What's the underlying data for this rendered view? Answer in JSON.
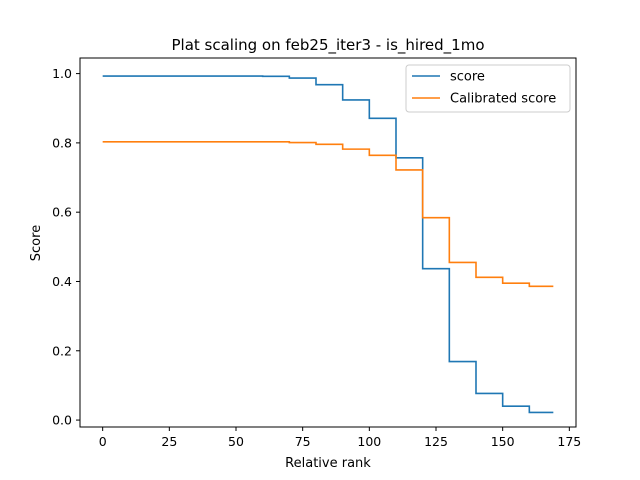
{
  "chart_data": {
    "type": "line",
    "title": "Plat scaling on feb25_iter3 - is_hired_1mo",
    "xlabel": "Relative rank",
    "ylabel": "Score",
    "xlim": [
      -8.5,
      177.5
    ],
    "ylim": [
      -0.02,
      1.045
    ],
    "xticks": [
      0,
      25,
      50,
      75,
      100,
      125,
      150,
      175
    ],
    "yticks": [
      0.0,
      0.2,
      0.4,
      0.6,
      0.8,
      1.0
    ],
    "xtick_labels": [
      "0",
      "25",
      "50",
      "75",
      "100",
      "125",
      "150",
      "175"
    ],
    "ytick_labels": [
      "0.0",
      "0.2",
      "0.4",
      "0.6",
      "0.8",
      "1.0"
    ],
    "grid": false,
    "legend_position": "top-right",
    "step": "post",
    "series": [
      {
        "name": "score",
        "color": "#1f77b4",
        "x": [
          0,
          60,
          70,
          80,
          90,
          100,
          110,
          120,
          130,
          140,
          150,
          160,
          169
        ],
        "y": [
          0.993,
          0.992,
          0.987,
          0.968,
          0.924,
          0.871,
          0.757,
          0.437,
          0.169,
          0.077,
          0.04,
          0.022,
          0.022
        ]
      },
      {
        "name": "Calibrated score",
        "color": "#ff7f0e",
        "x": [
          0,
          60,
          70,
          80,
          90,
          100,
          110,
          120,
          130,
          140,
          150,
          160,
          169
        ],
        "y": [
          0.803,
          0.803,
          0.801,
          0.796,
          0.782,
          0.764,
          0.722,
          0.584,
          0.455,
          0.412,
          0.395,
          0.386,
          0.386
        ]
      }
    ]
  }
}
